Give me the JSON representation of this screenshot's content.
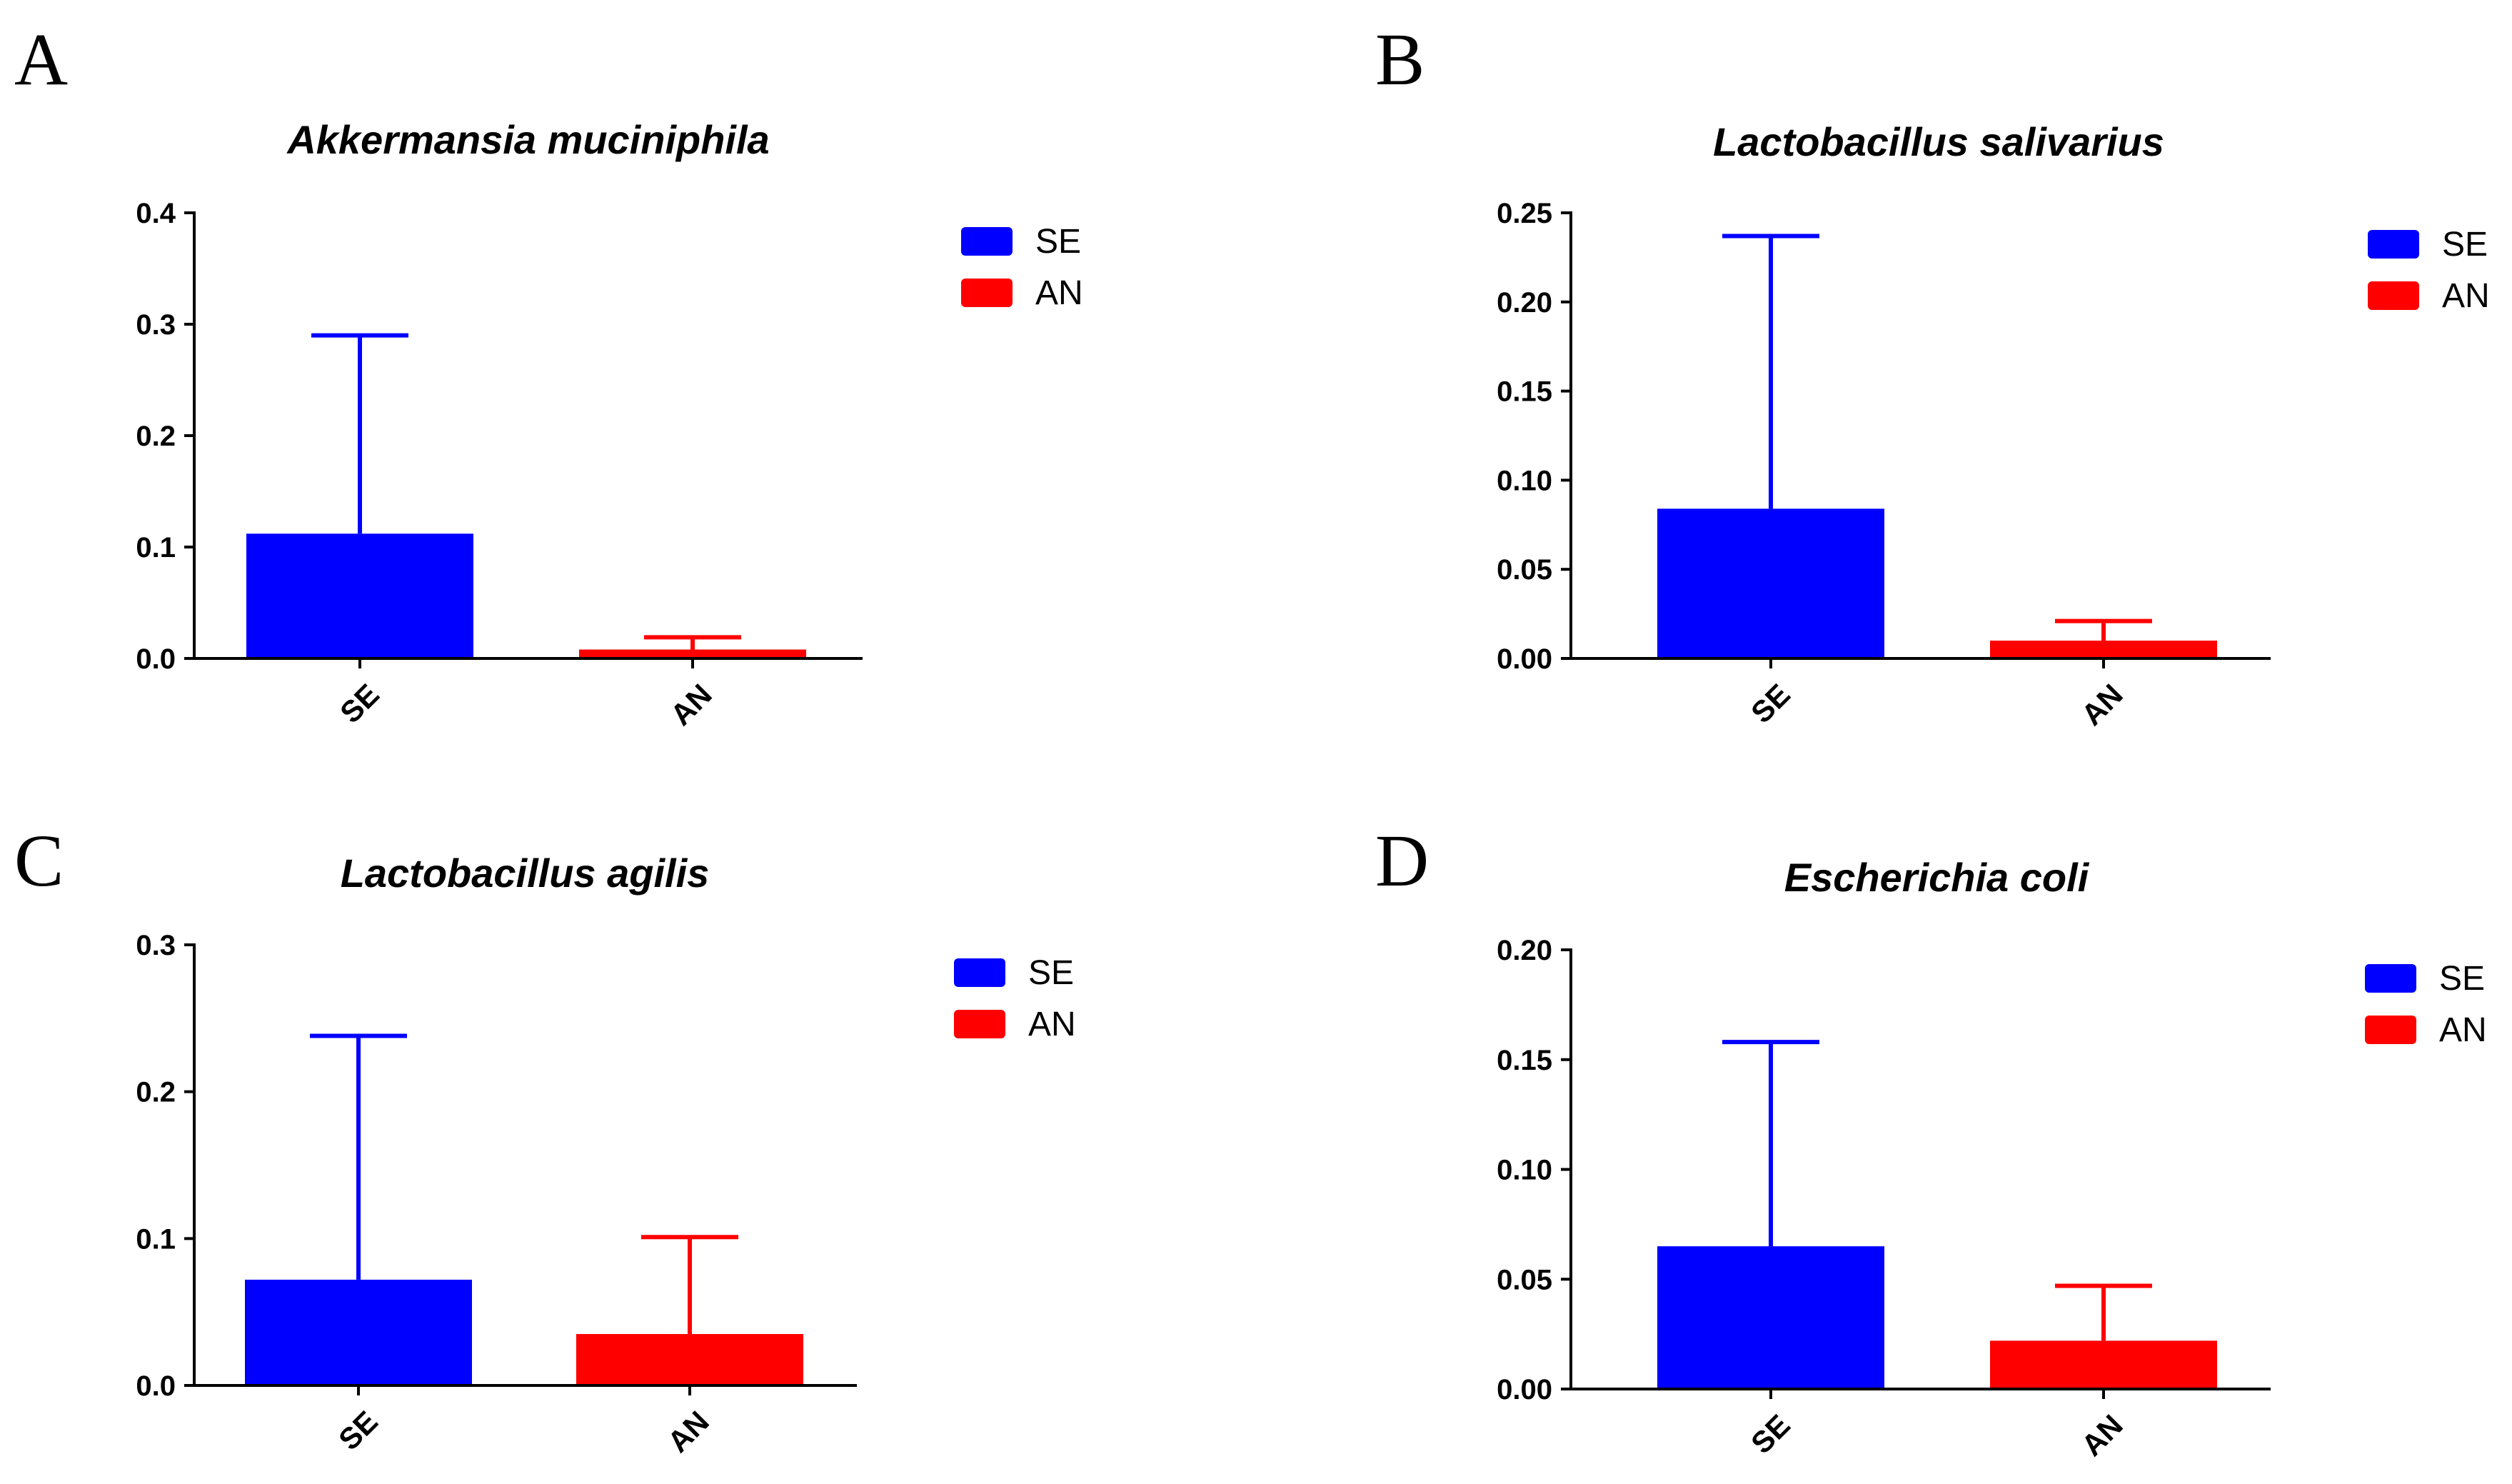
{
  "chart_data": [
    {
      "panel": "A",
      "type": "bar",
      "title": "Akkermansia muciniphila",
      "categories": [
        "SE",
        "AN"
      ],
      "values": [
        0.112,
        0.008
      ],
      "error_upper": [
        0.29,
        0.019
      ],
      "colors": [
        "#0000ff",
        "#ff0000"
      ],
      "ylim": [
        0,
        0.4
      ],
      "yticks": [
        "0.0",
        "0.1",
        "0.2",
        "0.3",
        "0.4"
      ],
      "legend": [
        {
          "label": "SE",
          "color": "#0000ff"
        },
        {
          "label": "AN",
          "color": "#ff0000"
        }
      ]
    },
    {
      "panel": "B",
      "type": "bar",
      "title": "Lactobacillus salivarius",
      "categories": [
        "SE",
        "AN"
      ],
      "values": [
        0.084,
        0.01
      ],
      "error_upper": [
        0.237,
        0.021
      ],
      "colors": [
        "#0000ff",
        "#ff0000"
      ],
      "ylim": [
        0,
        0.25
      ],
      "yticks": [
        "0.00",
        "0.05",
        "0.10",
        "0.15",
        "0.20",
        "0.25"
      ],
      "legend": [
        {
          "label": "SE",
          "color": "#0000ff"
        },
        {
          "label": "AN",
          "color": "#ff0000"
        }
      ]
    },
    {
      "panel": "C",
      "type": "bar",
      "title": "Lactobacillus agilis",
      "categories": [
        "SE",
        "AN"
      ],
      "values": [
        0.072,
        0.035
      ],
      "error_upper": [
        0.238,
        0.101
      ],
      "colors": [
        "#0000ff",
        "#ff0000"
      ],
      "ylim": [
        0,
        0.3
      ],
      "yticks": [
        "0.0",
        "0.1",
        "0.2",
        "0.3"
      ],
      "legend": [
        {
          "label": "SE",
          "color": "#0000ff"
        },
        {
          "label": "AN",
          "color": "#ff0000"
        }
      ]
    },
    {
      "panel": "D",
      "type": "bar",
      "title": "Escherichia coli",
      "categories": [
        "SE",
        "AN"
      ],
      "values": [
        0.065,
        0.022
      ],
      "error_upper": [
        0.158,
        0.047
      ],
      "colors": [
        "#0000ff",
        "#ff0000"
      ],
      "ylim": [
        0,
        0.2
      ],
      "yticks": [
        "0.00",
        "0.05",
        "0.10",
        "0.15",
        "0.20"
      ],
      "legend": [
        {
          "label": "SE",
          "color": "#0000ff"
        },
        {
          "label": "AN",
          "color": "#ff0000"
        }
      ]
    }
  ]
}
